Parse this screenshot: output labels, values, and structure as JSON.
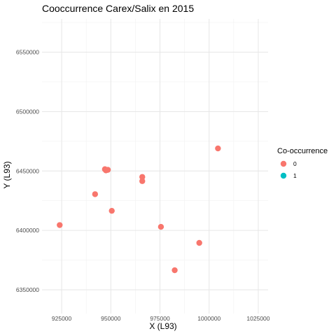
{
  "chart_data": {
    "type": "scatter",
    "title": "Cooccurrence Carex/Salix en 2015",
    "xlabel": "X (L93)",
    "ylabel": "Y (L93)",
    "xlim": [
      915000,
      1030000
    ],
    "ylim": [
      6330000,
      6578000
    ],
    "x_ticks": [
      925000,
      950000,
      975000,
      1000000,
      1025000
    ],
    "x_tick_labels": [
      "925000",
      "950000",
      "975000",
      "1000000",
      "1025000"
    ],
    "y_ticks": [
      6350000,
      6400000,
      6450000,
      6500000,
      6550000
    ],
    "y_tick_labels": [
      "6350000",
      "6400000",
      "6450000",
      "6500000",
      "6550000"
    ],
    "grid": true,
    "legend": {
      "title": "Co-occurrence",
      "placement": "right",
      "entries": [
        {
          "label": "0",
          "color": "#F8766D"
        },
        {
          "label": "1",
          "color": "#00BFC4"
        }
      ]
    },
    "series": [
      {
        "name": "0",
        "color": "#F8766D",
        "points": [
          {
            "x": 924000,
            "y": 6404500
          },
          {
            "x": 942000,
            "y": 6430500
          },
          {
            "x": 947000,
            "y": 6451500
          },
          {
            "x": 947500,
            "y": 6450500
          },
          {
            "x": 948000,
            "y": 6450800
          },
          {
            "x": 948500,
            "y": 6451000
          },
          {
            "x": 950500,
            "y": 6416500
          },
          {
            "x": 966000,
            "y": 6445000
          },
          {
            "x": 966000,
            "y": 6441500
          },
          {
            "x": 975500,
            "y": 6403000
          },
          {
            "x": 982500,
            "y": 6366500
          },
          {
            "x": 995000,
            "y": 6389500
          },
          {
            "x": 1004500,
            "y": 6469000
          }
        ]
      },
      {
        "name": "1",
        "color": "#00BFC4",
        "points": []
      }
    ]
  }
}
